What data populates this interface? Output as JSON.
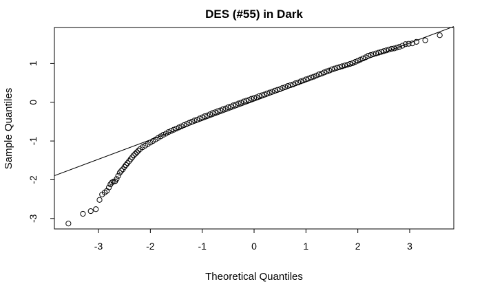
{
  "chart_data": {
    "type": "scatter",
    "title": "DES (#55) in Dark",
    "xlabel": "Theoretical Quantiles",
    "ylabel": "Sample Quantiles",
    "xlim": [
      -3.85,
      3.85
    ],
    "ylim": [
      -3.27,
      1.93
    ],
    "x_ticks": [
      -3,
      -2,
      -1,
      0,
      1,
      2,
      3
    ],
    "y_ticks": [
      -3,
      -2,
      -1,
      0,
      1
    ],
    "grid": false,
    "marker": "open-circle",
    "reference_line": {
      "slope": 0.5,
      "intercept": 0.03
    },
    "series": [
      {
        "x": [
          -3.58,
          -3.3,
          -3.15,
          -3.05,
          -2.98,
          -2.93,
          -2.88,
          -2.84,
          -2.8,
          -2.77,
          -2.74,
          -2.71,
          -2.68,
          -2.65,
          -2.62,
          -2.59,
          -2.56,
          -2.53,
          -2.5,
          -2.47,
          -2.44,
          -2.41,
          -2.38,
          -2.35,
          -2.32,
          -2.29,
          -2.26,
          -2.23,
          -2.2,
          -2.15,
          -2.1,
          -2.05,
          -2.0,
          -1.95,
          -1.9,
          -1.85,
          -1.8,
          -1.75,
          -1.7,
          -1.65,
          -1.6,
          -1.55,
          -1.5,
          -1.45,
          -1.4,
          -1.35,
          -1.3,
          -1.25,
          -1.2,
          -1.15,
          -1.1,
          -1.05,
          -1.0,
          -0.95,
          -0.9,
          -0.85,
          -0.8,
          -0.75,
          -0.7,
          -0.65,
          -0.6,
          -0.55,
          -0.5,
          -0.45,
          -0.4,
          -0.35,
          -0.3,
          -0.25,
          -0.2,
          -0.15,
          -0.1,
          -0.05,
          0.0,
          0.05,
          0.1,
          0.15,
          0.2,
          0.25,
          0.3,
          0.35,
          0.4,
          0.45,
          0.5,
          0.55,
          0.6,
          0.65,
          0.7,
          0.75,
          0.8,
          0.85,
          0.9,
          0.95,
          1.0,
          1.05,
          1.1,
          1.15,
          1.2,
          1.25,
          1.3,
          1.35,
          1.4,
          1.45,
          1.5,
          1.55,
          1.6,
          1.65,
          1.7,
          1.75,
          1.8,
          1.85,
          1.9,
          1.95,
          2.0,
          2.05,
          2.1,
          2.15,
          2.2,
          2.25,
          2.3,
          2.35,
          2.4,
          2.45,
          2.5,
          2.55,
          2.6,
          2.65,
          2.7,
          2.75,
          2.8,
          2.86,
          2.92,
          2.98,
          3.05,
          3.13,
          3.3,
          3.58
        ],
        "y": [
          -3.13,
          -2.88,
          -2.81,
          -2.76,
          -2.52,
          -2.38,
          -2.33,
          -2.29,
          -2.2,
          -2.12,
          -2.07,
          -2.05,
          -2.04,
          -1.98,
          -1.9,
          -1.82,
          -1.77,
          -1.73,
          -1.67,
          -1.62,
          -1.57,
          -1.52,
          -1.47,
          -1.42,
          -1.37,
          -1.33,
          -1.29,
          -1.25,
          -1.21,
          -1.16,
          -1.12,
          -1.08,
          -1.04,
          -1.0,
          -0.96,
          -0.92,
          -0.88,
          -0.84,
          -0.81,
          -0.77,
          -0.74,
          -0.71,
          -0.68,
          -0.65,
          -0.62,
          -0.59,
          -0.56,
          -0.53,
          -0.5,
          -0.47,
          -0.45,
          -0.42,
          -0.39,
          -0.36,
          -0.34,
          -0.31,
          -0.28,
          -0.26,
          -0.23,
          -0.21,
          -0.18,
          -0.16,
          -0.13,
          -0.11,
          -0.08,
          -0.06,
          -0.03,
          -0.01,
          0.02,
          0.04,
          0.06,
          0.09,
          0.11,
          0.13,
          0.16,
          0.18,
          0.2,
          0.23,
          0.25,
          0.27,
          0.3,
          0.32,
          0.34,
          0.37,
          0.39,
          0.42,
          0.44,
          0.46,
          0.49,
          0.51,
          0.54,
          0.56,
          0.59,
          0.61,
          0.64,
          0.66,
          0.69,
          0.72,
          0.74,
          0.77,
          0.8,
          0.82,
          0.85,
          0.87,
          0.89,
          0.91,
          0.93,
          0.95,
          0.97,
          0.99,
          1.01,
          1.04,
          1.07,
          1.1,
          1.13,
          1.16,
          1.2,
          1.22,
          1.24,
          1.26,
          1.28,
          1.3,
          1.32,
          1.34,
          1.36,
          1.38,
          1.39,
          1.41,
          1.43,
          1.46,
          1.5,
          1.51,
          1.52,
          1.56,
          1.6,
          1.73
        ]
      }
    ]
  }
}
